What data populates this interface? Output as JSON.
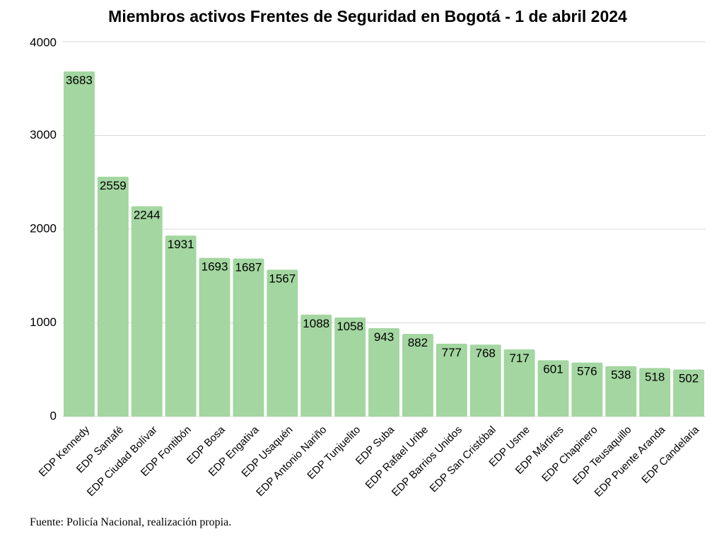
{
  "chart_data": {
    "type": "bar",
    "title": "Miembros activos Frentes de Seguridad en Bogotá - 1 de abril 2024",
    "xlabel": "",
    "ylabel": "",
    "categories": [
      "EDP Kennedy",
      "EDP Santafé",
      "EDP Ciudad Bolívar",
      "EDP Fontibón",
      "EDP Bosa",
      "EDP Engativa",
      "EDP Usaquén",
      "EDP Antonio Nariño",
      "EDP Tunjuelito",
      "EDP Suba",
      "EDP Rafael Uribe",
      "EDP Barrios Unidos",
      "EDP San Cristóbal",
      "EDP Usme",
      "EDP Mártires",
      "EDP Chapinero",
      "EDP Teusaquillo",
      "EDP Puente Aranda",
      "EDP Candelaria"
    ],
    "values": [
      3683,
      2559,
      2244,
      1931,
      1693,
      1687,
      1567,
      1088,
      1058,
      943,
      882,
      777,
      768,
      717,
      601,
      576,
      538,
      518,
      502
    ],
    "ylim": [
      0,
      4000
    ],
    "yticks": [
      0,
      1000,
      2000,
      3000,
      4000
    ],
    "grid": true,
    "legend": "none",
    "bar_color": "#a3d6a0",
    "grid_color": "#d9d9d9"
  },
  "source": "Fuente: Policía Nacional, realización propia."
}
